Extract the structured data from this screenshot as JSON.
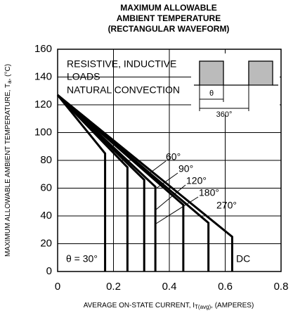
{
  "chart_data": {
    "type": "line",
    "title": [
      "MAXIMUM ALLOWABLE",
      "AMBIENT TEMPERATURE",
      "(RECTANGULAR WAVEFORM)"
    ],
    "ylabel": {
      "text": "MAXIMUM ALLOWABLE AMBIENT TEMPERATURE, T",
      "sub": "a",
      "suffix": ", (°C)"
    },
    "xlabel": {
      "text": "AVERAGE ON-STATE CURRENT, I",
      "sub": "T(avg)",
      "suffix": ", (AMPERES)"
    },
    "annotations": [
      "RESISTIVE, INDUCTIVE",
      "LOADS",
      "NATURAL CONVECTION"
    ],
    "inset": {
      "theta": "θ",
      "period": "360°"
    },
    "xlim": [
      0,
      0.8
    ],
    "xticks": [
      0,
      0.2,
      0.4,
      0.6,
      0.8
    ],
    "ylim": [
      0,
      160
    ],
    "yticks": [
      0,
      20,
      40,
      60,
      80,
      100,
      120,
      140,
      160
    ],
    "grid": true,
    "series": [
      {
        "name": "θ = 30°",
        "color": "#000000",
        "x": [
          0,
          0.17,
          0.17
        ],
        "values": [
          127,
          85,
          0
        ]
      },
      {
        "name": "60°",
        "color": "#000000",
        "x": [
          0,
          0.25,
          0.25
        ],
        "values": [
          127,
          75,
          0
        ]
      },
      {
        "name": "90°",
        "color": "#000000",
        "x": [
          0,
          0.31,
          0.31
        ],
        "values": [
          127,
          66,
          0
        ]
      },
      {
        "name": "120°",
        "color": "#000000",
        "x": [
          0,
          0.35,
          0.35
        ],
        "values": [
          127,
          61,
          0
        ]
      },
      {
        "name": "180°",
        "color": "#000000",
        "x": [
          0,
          0.45,
          0.45
        ],
        "values": [
          127,
          48,
          0
        ]
      },
      {
        "name": "270°",
        "color": "#000000",
        "x": [
          0,
          0.54,
          0.54
        ],
        "values": [
          127,
          35,
          0
        ]
      },
      {
        "name": "DC",
        "color": "#000000",
        "x": [
          0,
          0.625,
          0.625
        ],
        "values": [
          127,
          25,
          0
        ]
      }
    ]
  }
}
